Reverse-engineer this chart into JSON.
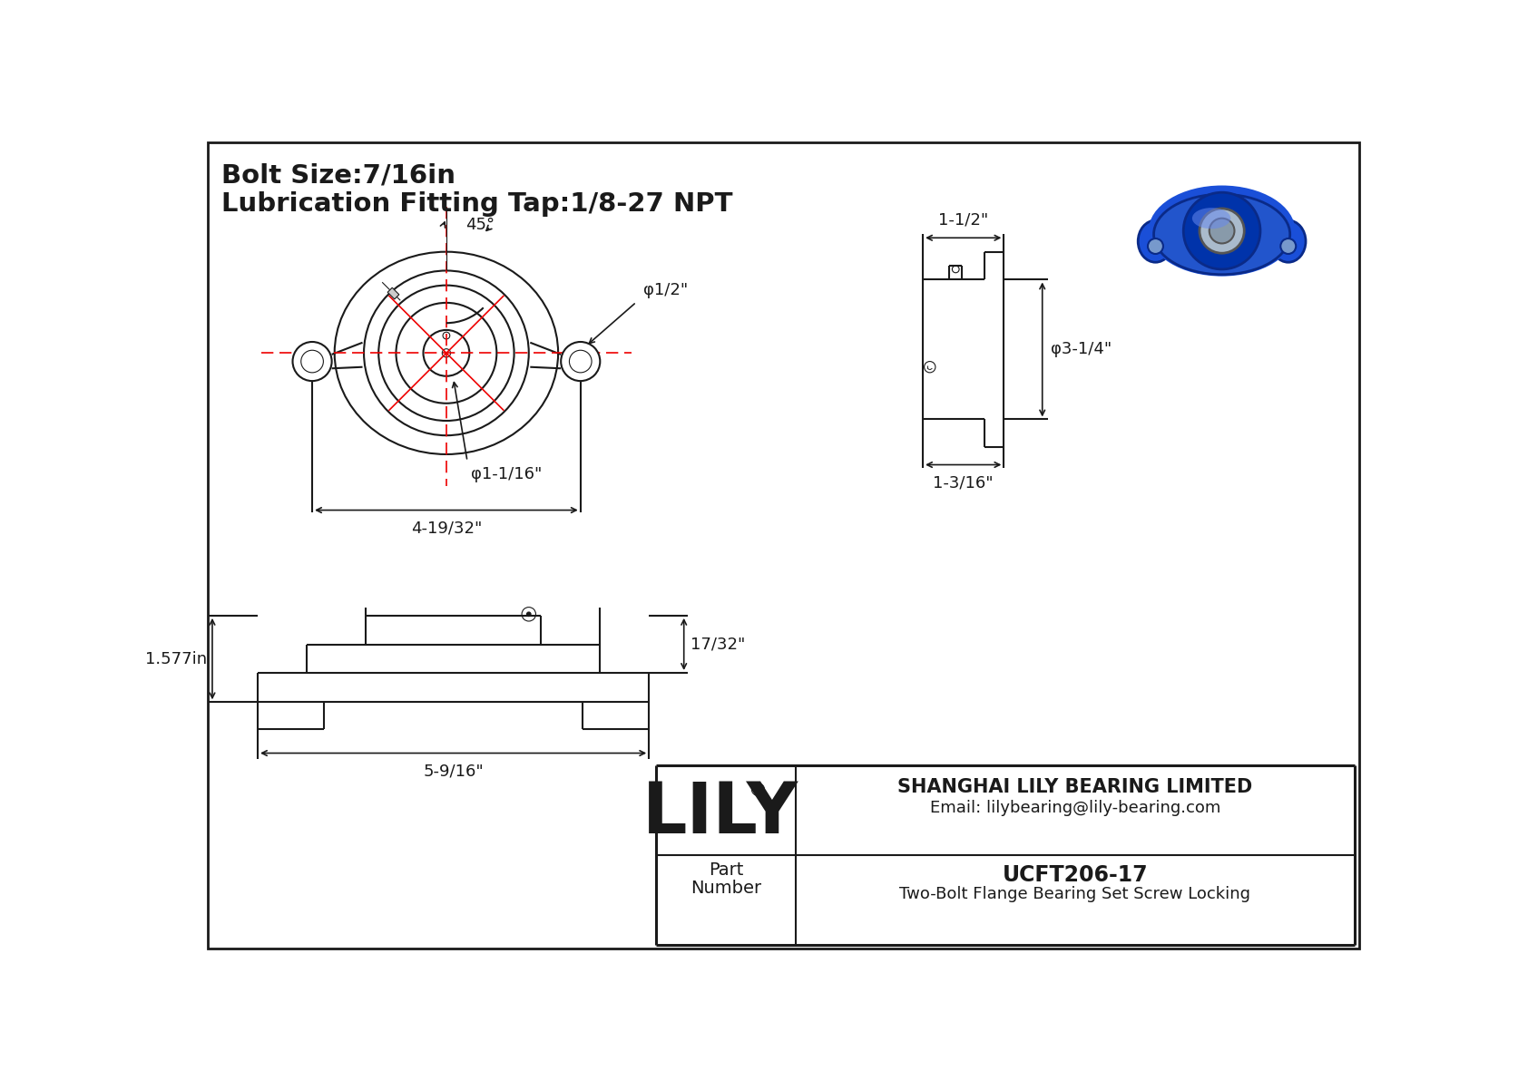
{
  "title_line1": "Bolt Size:7/16in",
  "title_line2": "Lubrication Fitting Tap:1/8-27 NPT",
  "bg_color": "#ffffff",
  "line_color": "#1a1a1a",
  "red_color": "#ee0000",
  "part_number": "UCFT206-17",
  "part_desc": "Two-Bolt Flange Bearing Set Screw Locking",
  "company": "SHANGHAI LILY BEARING LIMITED",
  "email": "Email: lilybearing@lily-bearing.com",
  "dim_angle": "45°",
  "dim_d1": "φ1/2\"",
  "dim_d2": "φ1-1/16\"",
  "dim_width": "4-19/32\"",
  "dim_side_width": "1-1/2\"",
  "dim_side_height": "φ3-1/4\"",
  "dim_side_base": "1-3/16\"",
  "dim_front_height": "1.577in",
  "dim_front_width": "5-9/16\"",
  "dim_front_top": "17/32\""
}
